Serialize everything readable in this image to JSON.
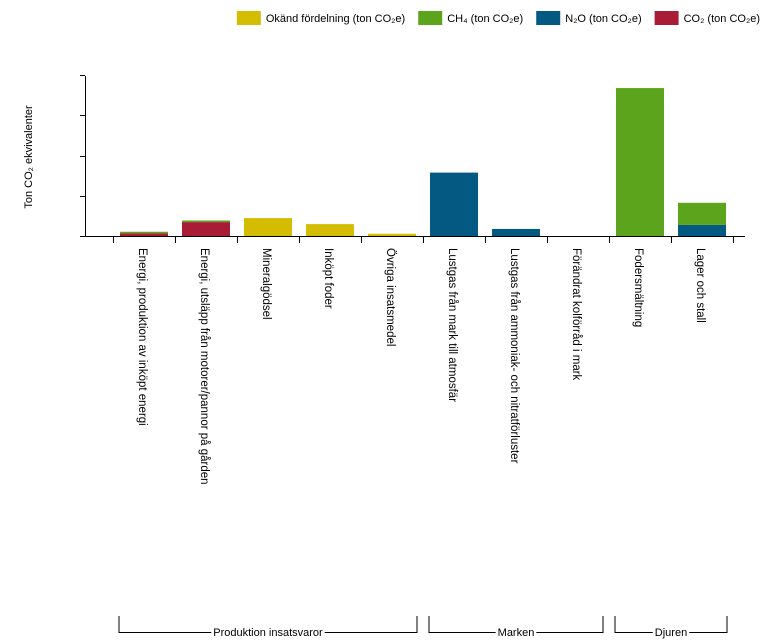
{
  "chart_data": {
    "type": "bar",
    "stacked": true,
    "title": "",
    "ylabel": "Ton CO₂ ekvivalenter",
    "xlabel": "",
    "ylim": [
      0,
      4
    ],
    "ytick_count": 5,
    "grid": false,
    "legend_position": "top-right",
    "categories": [
      "Energi, produktion av inköpt energi",
      "Energi, utsläpp från motorer/pannor på gården",
      "Mineralgödsel",
      "Inköpt foder",
      "Övriga insatsmedel",
      "Lustgas från mark till atmosfär",
      "Lustgas från ammoniak- och nitratförluster",
      "Förändrat kolförråd i mark",
      "Fodersmältning",
      "Lager och stall"
    ],
    "series": [
      {
        "name": "CO₂ (ton CO₂e)",
        "color": "#a81c36",
        "values": [
          0.09,
          0.37,
          0,
          0,
          0,
          0,
          0,
          0,
          0,
          0
        ]
      },
      {
        "name": "N₂O (ton CO₂e)",
        "color": "#035981",
        "values": [
          0,
          0,
          0,
          0,
          0,
          1.6,
          0.2,
          0,
          0,
          0.3
        ]
      },
      {
        "name": "CH₄ (ton CO₂e)",
        "color": "#5ba41b",
        "values": [
          0.04,
          0.04,
          0,
          0,
          0,
          0,
          0,
          0,
          3.7,
          0.55
        ]
      },
      {
        "name": "Okänd fördelning (ton CO₂e)",
        "color": "#d4bc00",
        "values": [
          0,
          0,
          0.47,
          0.32,
          0.08,
          0,
          0,
          0,
          0,
          0
        ]
      }
    ],
    "legend_order": [
      "Okänd fördelning (ton CO₂e)",
      "CH₄ (ton CO₂e)",
      "N₂O (ton CO₂e)",
      "CO₂ (ton CO₂e)"
    ],
    "groups": [
      {
        "label": "Produktion insatsvaror",
        "from": 0,
        "to": 4
      },
      {
        "label": "Marken",
        "from": 5,
        "to": 7
      },
      {
        "label": "Djuren",
        "from": 8,
        "to": 9
      }
    ]
  }
}
